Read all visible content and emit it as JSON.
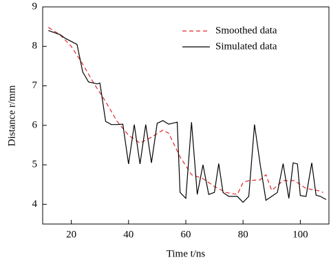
{
  "chart_data": {
    "type": "line",
    "xlabel": "Time t/ns",
    "ylabel": "Distance r/mm",
    "xlim": [
      10,
      110
    ],
    "xticks": [
      20,
      40,
      60,
      80,
      100
    ],
    "ylim": [
      3.5,
      9
    ],
    "yticks": [
      4,
      5,
      6,
      7,
      8,
      9
    ],
    "legend": "upper right",
    "series": [
      {
        "name": "Smoothed data",
        "color": "#e0262b",
        "dash": true,
        "x": [
          12,
          16,
          20,
          24,
          28,
          32,
          36,
          40,
          44,
          48,
          52,
          54,
          58,
          62,
          66,
          70,
          74,
          78,
          80,
          82,
          86,
          88,
          90,
          94,
          98,
          102,
          106,
          108
        ],
        "values": [
          8.48,
          8.3,
          8.0,
          7.55,
          7.05,
          6.6,
          6.1,
          5.75,
          5.55,
          5.7,
          5.88,
          5.8,
          5.2,
          4.75,
          4.65,
          4.45,
          4.3,
          4.25,
          4.55,
          4.6,
          4.62,
          4.75,
          4.35,
          4.6,
          4.6,
          4.4,
          4.35,
          4.3
        ]
      },
      {
        "name": "Simulated data",
        "color": "#000000",
        "dash": false,
        "x": [
          12,
          16,
          18,
          22,
          24,
          26,
          29,
          30,
          32,
          34,
          36,
          38,
          40,
          42,
          44,
          46,
          48,
          50,
          52,
          54,
          57,
          58,
          60,
          62,
          64,
          66,
          68,
          70,
          71.5,
          73,
          75,
          78,
          80,
          82,
          84,
          86,
          88,
          90,
          92,
          94,
          96,
          97.5,
          99,
          100,
          102,
          104,
          105.5,
          107,
          109
        ],
        "values": [
          8.4,
          8.3,
          8.2,
          8.05,
          7.35,
          7.1,
          7.05,
          7.07,
          6.1,
          6.02,
          6.02,
          6.03,
          5.02,
          6.02,
          5.02,
          6.02,
          5.05,
          6.05,
          6.12,
          6.03,
          6.08,
          4.3,
          4.15,
          6.08,
          4.25,
          5.0,
          4.25,
          4.3,
          5.03,
          4.3,
          4.2,
          4.2,
          4.05,
          4.2,
          6.02,
          5.0,
          4.1,
          4.2,
          4.3,
          5.03,
          4.15,
          5.05,
          5.02,
          4.22,
          4.2,
          5.05,
          4.23,
          4.2,
          4.12
        ]
      }
    ]
  }
}
